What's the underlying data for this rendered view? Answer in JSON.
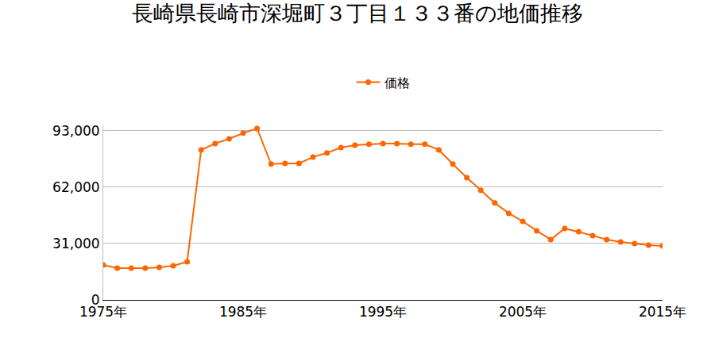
{
  "chart_data": {
    "type": "line",
    "title": "長崎県長崎市深堀町３丁目１３３番の地価推移",
    "x": [
      1975,
      1976,
      1977,
      1978,
      1979,
      1980,
      1981,
      1982,
      1983,
      1984,
      1985,
      1986,
      1987,
      1988,
      1989,
      1990,
      1991,
      1992,
      1993,
      1994,
      1995,
      1996,
      1997,
      1998,
      1999,
      2000,
      2001,
      2002,
      2003,
      2004,
      2005,
      2006,
      2007,
      2008,
      2009,
      2010,
      2011,
      2012,
      2013,
      2014,
      2015
    ],
    "series": [
      {
        "name": "価格",
        "color": "#ff6600",
        "marker": "circle",
        "values": [
          19200,
          17500,
          17500,
          17500,
          17900,
          18800,
          21000,
          82500,
          86000,
          88600,
          91700,
          94300,
          74700,
          75100,
          75100,
          78600,
          80800,
          83800,
          85100,
          85600,
          86000,
          86000,
          85600,
          85600,
          82500,
          74700,
          67200,
          60300,
          53300,
          47600,
          43200,
          38000,
          33200,
          39300,
          37500,
          35400,
          33200,
          31900,
          31000,
          30100,
          29700
        ]
      }
    ],
    "xlim": [
      1975,
      2015
    ],
    "xticks": [
      {
        "value": 1975,
        "label": "1975年"
      },
      {
        "value": 1985,
        "label": "1985年"
      },
      {
        "value": 1995,
        "label": "1995年"
      },
      {
        "value": 2005,
        "label": "2005年"
      },
      {
        "value": 2015,
        "label": "2015年"
      }
    ],
    "ylim": [
      0,
      96000
    ],
    "yticks": [
      0,
      {
        "value": 31000,
        "label": "31,000"
      },
      {
        "value": 62000,
        "label": "62,000"
      },
      {
        "value": 93000,
        "label": "93,000"
      }
    ],
    "grid": true,
    "legend": "top"
  }
}
